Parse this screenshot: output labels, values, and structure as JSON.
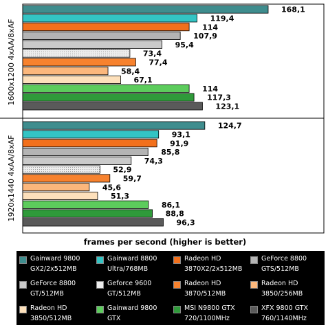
{
  "chart_data": {
    "type": "bar",
    "orientation": "horizontal",
    "xlabel": "frames per second (higher is better)",
    "xlim": [
      0,
      180
    ],
    "grid": false,
    "legend_position": "bottom",
    "groups": [
      "1600x1200 4xAA/8xAF",
      "1920x1440 4xAA/8xAF"
    ],
    "series": [
      {
        "name": "Gainward 9800 GX2/2x512MB",
        "color": "#3f8d8e",
        "values": [
          168.1,
          124.7
        ],
        "labels": [
          "168,1",
          "124,7"
        ]
      },
      {
        "name": "Gainward 8800 Ultra/768MB",
        "color": "#33c4c4",
        "values": [
          119.4,
          93.1
        ],
        "labels": [
          "119,4",
          "93,1"
        ]
      },
      {
        "name": "Radeon HD 3870X2/2x512MB",
        "color": "#f2701c",
        "values": [
          114,
          91.9
        ],
        "labels": [
          "114",
          "91,9"
        ]
      },
      {
        "name": "GeForce 8800 GTS/512MB",
        "color": "#b4b4b4",
        "values": [
          107.9,
          85.8
        ],
        "labels": [
          "107,9",
          "85,8"
        ]
      },
      {
        "name": "GeForce 8800 GT/512MB",
        "color": "#cacaca",
        "values": [
          95.4,
          74.3
        ],
        "labels": [
          "95,4",
          "74,3"
        ]
      },
      {
        "name": "Geforce 9600 GT/512MB",
        "color": "#ededed",
        "pattern": "dots",
        "values": [
          73.4,
          52.9
        ],
        "labels": [
          "73,4",
          "52,9"
        ]
      },
      {
        "name": "Radeon HD 3870/512MB",
        "color": "#f7822e",
        "values": [
          77.4,
          59.7
        ],
        "labels": [
          "77,4",
          "59,7"
        ]
      },
      {
        "name": "Radeon HD 3850/256MB",
        "color": "#fbb77c",
        "values": [
          58.4,
          45.6
        ],
        "labels": [
          "58,4",
          "45,6"
        ]
      },
      {
        "name": "Radeon HD 3850/512MB",
        "color": "#fde0bb",
        "values": [
          67.1,
          51.3
        ],
        "labels": [
          "67,1",
          "51,3"
        ]
      },
      {
        "name": "Gainward 9800 GTX 675/1100MHz",
        "color": "#5ccc5c",
        "values": [
          114,
          86.1
        ],
        "labels": [
          "114",
          "86,1"
        ]
      },
      {
        "name": "MSI N9800 GTX 720/1100MHz",
        "color": "#2f9a3a",
        "values": [
          117.3,
          88.8
        ],
        "labels": [
          "117,3",
          "88,8"
        ]
      },
      {
        "name": "XFX 9800 GTX 760/1140MHz",
        "color": "#5a5a5a",
        "values": [
          123.1,
          96.3
        ],
        "labels": [
          "123,1",
          "96,3"
        ]
      }
    ]
  },
  "legend": {
    "items": [
      {
        "text": "Gainward 9800\nGX2/2x512MB",
        "color": "#3f8d8e"
      },
      {
        "text": "Gainward 8800\nUltra/768MB",
        "color": "#33c4c4"
      },
      {
        "text": "Radeon HD\n3870X2/2x512MB",
        "color": "#f2701c"
      },
      {
        "text": "GeForce 8800\nGTS/512MB",
        "color": "#b4b4b4"
      },
      {
        "text": "GeForce 8800\nGT/512MB",
        "color": "#cacaca"
      },
      {
        "text": "Geforce 9600\nGT/512MB",
        "color": "#ededed"
      },
      {
        "text": "Radeon HD\n3870/512MB",
        "color": "#f7822e"
      },
      {
        "text": "Radeon HD\n3850/256MB",
        "color": "#fbb77c"
      },
      {
        "text": "Radeon HD\n3850/512MB",
        "color": "#fde0bb"
      },
      {
        "text": "Gainward 9800 GTX\n675/1100MHz",
        "color": "#5ccc5c"
      },
      {
        "text": "MSI N9800 GTX\n720/1100MHz",
        "color": "#2f9a3a"
      },
      {
        "text": "XFX 9800 GTX\n760/1140MHz",
        "color": "#5a5a5a"
      }
    ]
  }
}
